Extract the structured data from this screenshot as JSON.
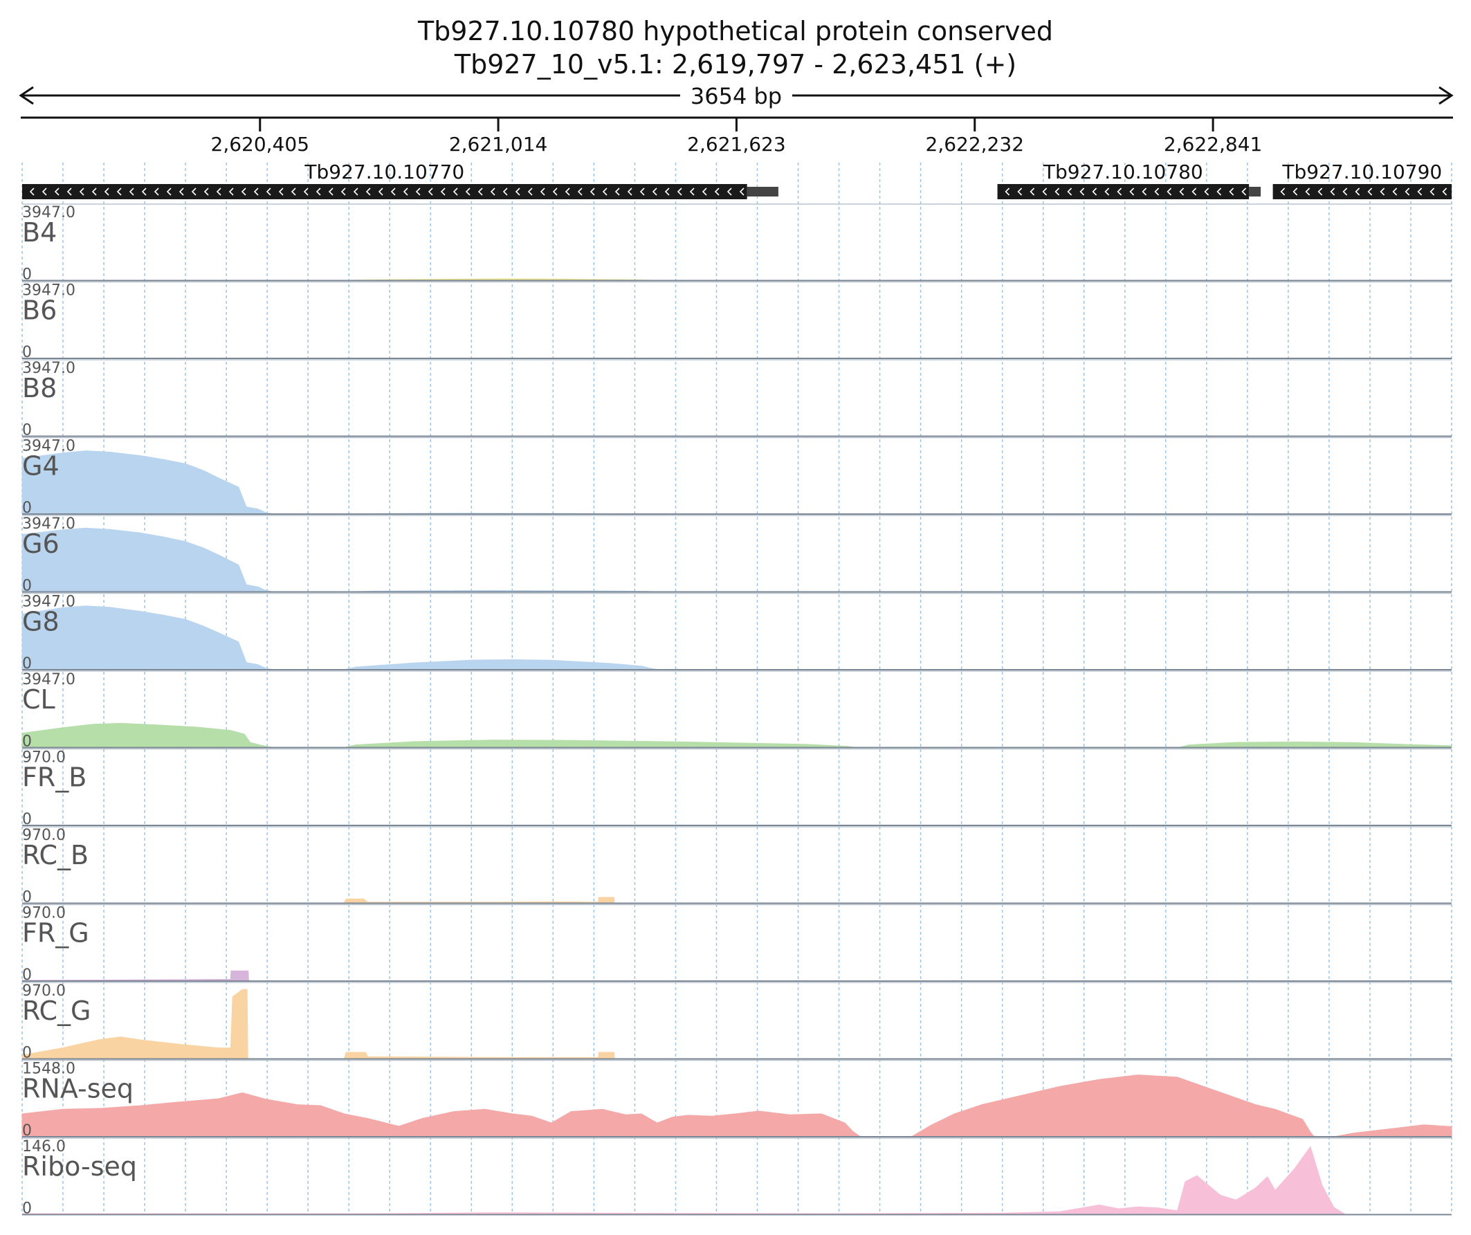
{
  "chart_data": {
    "type": "area",
    "title": "Tb927.10.10780  hypothetical protein  conserved",
    "subtitle": "Tb927_10_v5.1: 2,619,797 - 2,623,451 (+)",
    "span_label": "3654 bp",
    "xlim": [
      2619797,
      2623451
    ],
    "x_ticks": [
      {
        "value": 2620405,
        "label": "2,620,405"
      },
      {
        "value": 2621014,
        "label": "2,621,014"
      },
      {
        "value": 2621623,
        "label": "2,621,623"
      },
      {
        "value": 2622232,
        "label": "2,622,232"
      },
      {
        "value": 2622841,
        "label": "2,622,841"
      }
    ],
    "grid": true,
    "genes": [
      {
        "name": "Tb927.10.10770",
        "start": 2619797,
        "end": 2621650,
        "utr_end": 2621730,
        "strand": "-"
      },
      {
        "name": "Tb927.10.10780",
        "start": 2622290,
        "end": 2622933,
        "utr_end": 2622963,
        "strand": "-"
      },
      {
        "name": "Tb927.10.10790",
        "start": 2622994,
        "end": 2623451,
        "utr_end": 2623451,
        "strand": "-"
      }
    ],
    "tracks": [
      {
        "name": "B4",
        "max": 3947,
        "max_label": "3947.0",
        "zero_label": "0",
        "color": "#eadf8e",
        "points": [
          [
            2619797,
            10
          ],
          [
            2620100,
            10
          ],
          [
            2620125,
            0
          ],
          [
            2620627,
            0
          ],
          [
            2620650,
            30
          ],
          [
            2620800,
            60
          ],
          [
            2621014,
            98
          ],
          [
            2621150,
            90
          ],
          [
            2621300,
            55
          ],
          [
            2621397,
            30
          ],
          [
            2621420,
            0
          ]
        ]
      },
      {
        "name": "B6",
        "max": 3947,
        "max_label": "3947.0",
        "zero_label": "0",
        "color": "#eadf8e",
        "points": []
      },
      {
        "name": "B8",
        "max": 3947,
        "max_label": "3947.0",
        "zero_label": "0",
        "color": "#eadf8e",
        "points": []
      },
      {
        "name": "G4",
        "max": 3947,
        "max_label": "3947.0",
        "zero_label": "0",
        "color": "#b8d4ee",
        "points": [
          [
            2619797,
            3100
          ],
          [
            2619900,
            3400
          ],
          [
            2619960,
            3520
          ],
          [
            2620020,
            3450
          ],
          [
            2620100,
            3250
          ],
          [
            2620160,
            3030
          ],
          [
            2620215,
            2800
          ],
          [
            2620260,
            2430
          ],
          [
            2620300,
            2000
          ],
          [
            2620350,
            1500
          ],
          [
            2620370,
            400
          ],
          [
            2620400,
            280
          ],
          [
            2620420,
            80
          ],
          [
            2620440,
            0
          ],
          [
            2620627,
            0
          ],
          [
            2620700,
            25
          ],
          [
            2620900,
            45
          ],
          [
            2621100,
            40
          ],
          [
            2621397,
            10
          ],
          [
            2621420,
            0
          ]
        ]
      },
      {
        "name": "G6",
        "max": 3947,
        "max_label": "3947.0",
        "zero_label": "0",
        "color": "#b8d4ee",
        "points": [
          [
            2619797,
            3200
          ],
          [
            2619900,
            3450
          ],
          [
            2619960,
            3550
          ],
          [
            2620020,
            3480
          ],
          [
            2620100,
            3280
          ],
          [
            2620160,
            3050
          ],
          [
            2620215,
            2800
          ],
          [
            2620260,
            2450
          ],
          [
            2620300,
            2050
          ],
          [
            2620350,
            1500
          ],
          [
            2620370,
            400
          ],
          [
            2620400,
            280
          ],
          [
            2620420,
            80
          ],
          [
            2620440,
            0
          ],
          [
            2620627,
            0
          ],
          [
            2620700,
            50
          ],
          [
            2621000,
            80
          ],
          [
            2621300,
            55
          ],
          [
            2621397,
            30
          ],
          [
            2621420,
            0
          ]
        ]
      },
      {
        "name": "G8",
        "max": 3947,
        "max_label": "3947.0",
        "zero_label": "0",
        "color": "#b8d4ee",
        "points": [
          [
            2619797,
            3100
          ],
          [
            2619900,
            3450
          ],
          [
            2619960,
            3550
          ],
          [
            2620020,
            3480
          ],
          [
            2620100,
            3250
          ],
          [
            2620160,
            3030
          ],
          [
            2620215,
            2800
          ],
          [
            2620260,
            2430
          ],
          [
            2620300,
            2050
          ],
          [
            2620350,
            1550
          ],
          [
            2620370,
            400
          ],
          [
            2620400,
            280
          ],
          [
            2620420,
            80
          ],
          [
            2620440,
            0
          ],
          [
            2620620,
            0
          ],
          [
            2620650,
            150
          ],
          [
            2620800,
            380
          ],
          [
            2620950,
            540
          ],
          [
            2621050,
            560
          ],
          [
            2621150,
            530
          ],
          [
            2621300,
            350
          ],
          [
            2621380,
            200
          ],
          [
            2621410,
            50
          ],
          [
            2621430,
            0
          ]
        ]
      },
      {
        "name": "CL",
        "max": 3947,
        "max_label": "3947.0",
        "zero_label": "0",
        "color": "#b5dea8",
        "points": [
          [
            2619797,
            800
          ],
          [
            2619900,
            1100
          ],
          [
            2619980,
            1300
          ],
          [
            2620050,
            1350
          ],
          [
            2620150,
            1250
          ],
          [
            2620250,
            1130
          ],
          [
            2620330,
            950
          ],
          [
            2620365,
            750
          ],
          [
            2620380,
            280
          ],
          [
            2620410,
            120
          ],
          [
            2620440,
            0
          ],
          [
            2620620,
            0
          ],
          [
            2620650,
            150
          ],
          [
            2620800,
            330
          ],
          [
            2621000,
            420
          ],
          [
            2621200,
            400
          ],
          [
            2621500,
            310
          ],
          [
            2621800,
            180
          ],
          [
            2621910,
            60
          ],
          [
            2621930,
            0
          ],
          [
            2622753,
            0
          ],
          [
            2622780,
            150
          ],
          [
            2622900,
            290
          ],
          [
            2623050,
            320
          ],
          [
            2623200,
            280
          ],
          [
            2623350,
            160
          ],
          [
            2623420,
            120
          ],
          [
            2623451,
            100
          ]
        ]
      },
      {
        "name": "FR_B",
        "max": 970,
        "max_label": "970.0",
        "zero_label": "0",
        "color": "#f9d3a2",
        "points": []
      },
      {
        "name": "RC_B",
        "max": 970,
        "max_label": "970.0",
        "zero_label": "0",
        "color": "#f9d3a2",
        "points": [
          [
            2620620,
            0
          ],
          [
            2620625,
            60
          ],
          [
            2620670,
            60
          ],
          [
            2620680,
            15
          ],
          [
            2621000,
            15
          ],
          [
            2621200,
            20
          ],
          [
            2621250,
            15
          ],
          [
            2621270,
            15
          ],
          [
            2621271,
            80
          ],
          [
            2621310,
            80
          ],
          [
            2621311,
            0
          ]
        ]
      },
      {
        "name": "FR_G",
        "max": 970,
        "max_label": "970.0",
        "zero_label": "0",
        "color": "#d7b4dc",
        "points": [
          [
            2619797,
            10
          ],
          [
            2620200,
            20
          ],
          [
            2620330,
            25
          ],
          [
            2620331,
            140
          ],
          [
            2620375,
            140
          ],
          [
            2620376,
            0
          ]
        ]
      },
      {
        "name": "RC_G",
        "max": 970,
        "max_label": "970.0",
        "zero_label": "0",
        "color": "#f9d3a2",
        "points": [
          [
            2619797,
            50
          ],
          [
            2619900,
            150
          ],
          [
            2620000,
            270
          ],
          [
            2620050,
            300
          ],
          [
            2620100,
            260
          ],
          [
            2620200,
            200
          ],
          [
            2620300,
            150
          ],
          [
            2620330,
            150
          ],
          [
            2620335,
            850
          ],
          [
            2620360,
            950
          ],
          [
            2620372,
            950
          ],
          [
            2620374,
            0
          ],
          [
            2620620,
            0
          ],
          [
            2620625,
            90
          ],
          [
            2620675,
            90
          ],
          [
            2620680,
            30
          ],
          [
            2621000,
            20
          ],
          [
            2621250,
            20
          ],
          [
            2621270,
            20
          ],
          [
            2621271,
            90
          ],
          [
            2621310,
            90
          ],
          [
            2621311,
            0
          ]
        ]
      },
      {
        "name": "RNA-seq",
        "max": 1548,
        "max_label": "1548.0",
        "zero_label": "0",
        "color": "#f4a8a8",
        "points": [
          [
            2619797,
            500
          ],
          [
            2619900,
            600
          ],
          [
            2620000,
            620
          ],
          [
            2620100,
            680
          ],
          [
            2620200,
            760
          ],
          [
            2620300,
            830
          ],
          [
            2620360,
            960
          ],
          [
            2620420,
            820
          ],
          [
            2620500,
            700
          ],
          [
            2620560,
            680
          ],
          [
            2620620,
            500
          ],
          [
            2620680,
            400
          ],
          [
            2620760,
            230
          ],
          [
            2620820,
            400
          ],
          [
            2620900,
            550
          ],
          [
            2620980,
            600
          ],
          [
            2621050,
            500
          ],
          [
            2621100,
            450
          ],
          [
            2621150,
            300
          ],
          [
            2621200,
            550
          ],
          [
            2621280,
            600
          ],
          [
            2621340,
            480
          ],
          [
            2621380,
            500
          ],
          [
            2621420,
            300
          ],
          [
            2621460,
            430
          ],
          [
            2621500,
            470
          ],
          [
            2621560,
            450
          ],
          [
            2621620,
            500
          ],
          [
            2621680,
            560
          ],
          [
            2621760,
            480
          ],
          [
            2621840,
            500
          ],
          [
            2621900,
            300
          ],
          [
            2621920,
            120
          ],
          [
            2621940,
            0
          ],
          [
            2622070,
            0
          ],
          [
            2622120,
            250
          ],
          [
            2622180,
            500
          ],
          [
            2622250,
            700
          ],
          [
            2622350,
            900
          ],
          [
            2622450,
            1100
          ],
          [
            2622550,
            1250
          ],
          [
            2622650,
            1350
          ],
          [
            2622750,
            1300
          ],
          [
            2622850,
            1000
          ],
          [
            2622950,
            700
          ],
          [
            2623000,
            600
          ],
          [
            2623070,
            380
          ],
          [
            2623090,
            100
          ],
          [
            2623100,
            0
          ],
          [
            2623150,
            0
          ],
          [
            2623200,
            80
          ],
          [
            2623300,
            180
          ],
          [
            2623380,
            260
          ],
          [
            2623451,
            220
          ]
        ]
      },
      {
        "name": "Ribo-seq",
        "max": 146,
        "max_label": "146.0",
        "zero_label": "0",
        "color": "#f7c0d8",
        "points": [
          [
            2619797,
            2
          ],
          [
            2620700,
            2
          ],
          [
            2621000,
            4
          ],
          [
            2621300,
            3
          ],
          [
            2621850,
            2
          ],
          [
            2622300,
            3
          ],
          [
            2622450,
            6
          ],
          [
            2622550,
            20
          ],
          [
            2622600,
            12
          ],
          [
            2622650,
            16
          ],
          [
            2622700,
            14
          ],
          [
            2622750,
            8
          ],
          [
            2622770,
            68
          ],
          [
            2622800,
            80
          ],
          [
            2622830,
            60
          ],
          [
            2622860,
            40
          ],
          [
            2622900,
            30
          ],
          [
            2622950,
            55
          ],
          [
            2622980,
            78
          ],
          [
            2623000,
            50
          ],
          [
            2623050,
            95
          ],
          [
            2623090,
            140
          ],
          [
            2623120,
            60
          ],
          [
            2623150,
            15
          ],
          [
            2623180,
            0
          ]
        ]
      }
    ]
  }
}
